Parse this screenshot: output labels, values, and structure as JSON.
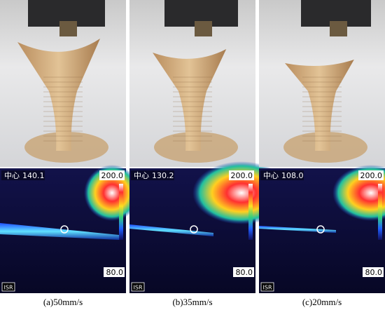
{
  "panels": [
    {
      "center_label": "中心",
      "center_value": "140.1",
      "scale_max": "200.0",
      "scale_min": "80.0",
      "badge": "ISR",
      "caption": "(a)50mm/s"
    },
    {
      "center_label": "中心",
      "center_value": "130.2",
      "scale_max": "200.0",
      "scale_min": "80.0",
      "badge": "ISR",
      "caption": "(b)35mm/s"
    },
    {
      "center_label": "中心",
      "center_value": "108.0",
      "scale_max": "200.0",
      "scale_min": "80.0",
      "badge": "ISR",
      "caption": "(c)20mm/s"
    }
  ]
}
